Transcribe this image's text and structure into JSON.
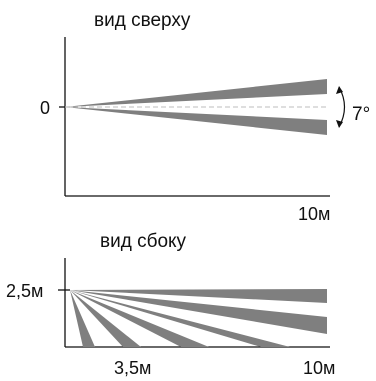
{
  "top_view": {
    "title": "вид сверху",
    "origin_label": "0",
    "distance_label": "10м",
    "angle_label": "7°"
  },
  "side_view": {
    "title": "вид сбоку",
    "height_label": "2,5м",
    "near_distance_label": "3,5м",
    "far_distance_label": "10м"
  },
  "colors": {
    "beam_fill": "#7f7f7f",
    "axis": "#111111",
    "center_line": "#bdbdbd",
    "background": "#ffffff"
  }
}
